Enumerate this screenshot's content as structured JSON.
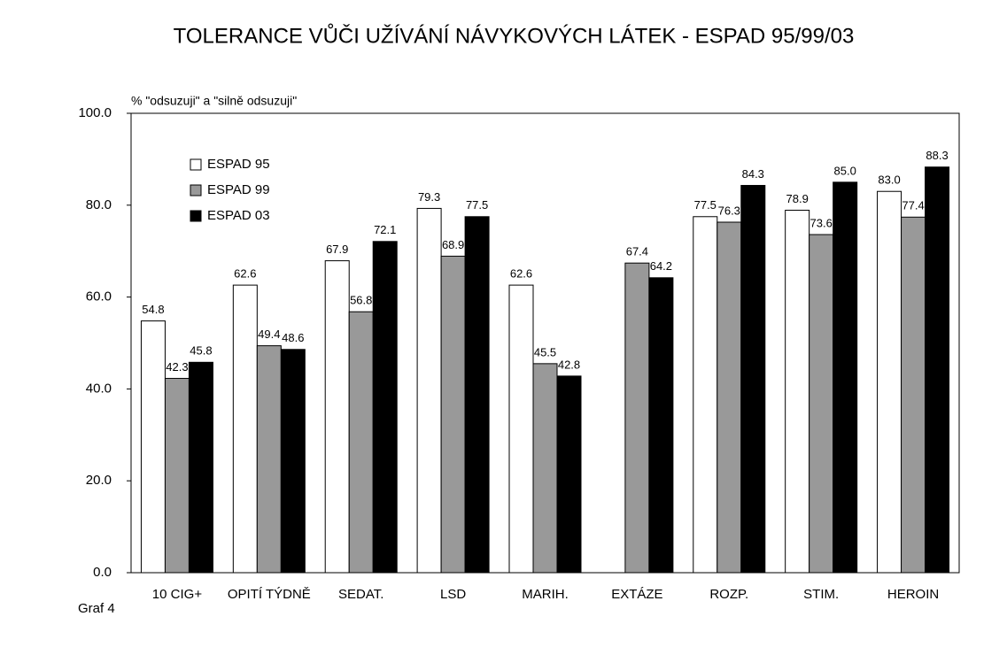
{
  "chart_data": {
    "type": "bar",
    "title": "TOLERANCE VŮČI UŽÍVÁNÍ NÁVYKOVÝCH LÁTEK - ESPAD 95/99/03",
    "y_label": "% \"odsuzuji\" a \"silně odsuzuji\"",
    "caption": "Graf 4",
    "categories": [
      "10 CIG+",
      "OPITÍ TÝDNĚ",
      "SEDAT.",
      "LSD",
      "MARIH.",
      "EXTÁZE",
      "ROZP.",
      "STIM.",
      "HEROIN"
    ],
    "series": [
      {
        "name": "ESPAD 95",
        "color": "#ffffff",
        "values": [
          54.8,
          62.6,
          67.9,
          79.3,
          62.6,
          null,
          77.5,
          78.9,
          83.0
        ],
        "value_labels": [
          "54.8",
          "62.6",
          "67.9",
          "79.3",
          "62.6",
          null,
          "77.5",
          "78.9",
          "83.0"
        ]
      },
      {
        "name": "ESPAD 99",
        "color": "#999999",
        "values": [
          42.3,
          49.4,
          56.8,
          68.9,
          45.5,
          67.4,
          76.3,
          73.6,
          77.4
        ],
        "value_labels": [
          "42.3",
          "49.4",
          "56.8",
          "68.9",
          "45.5",
          "67.4",
          "76.3",
          "73.6",
          "77.4"
        ]
      },
      {
        "name": "ESPAD 03",
        "color": "#000000",
        "values": [
          45.8,
          48.6,
          72.1,
          77.5,
          42.8,
          64.2,
          84.3,
          85.0,
          88.3
        ],
        "value_labels": [
          "45.8",
          "48.6",
          "72.1",
          "77.5",
          "42.8",
          "64.2",
          "84.3",
          "85.0",
          "88.3"
        ]
      }
    ],
    "ylim": [
      0,
      100
    ],
    "yticks": [
      {
        "value": 0,
        "label": "0.0"
      },
      {
        "value": 20,
        "label": "20.0"
      },
      {
        "value": 40,
        "label": "40.0"
      },
      {
        "value": 60,
        "label": "60.0"
      },
      {
        "value": 80,
        "label": "80.0"
      },
      {
        "value": 100,
        "label": "100.0"
      }
    ],
    "grid": false,
    "legend": "upper left"
  }
}
